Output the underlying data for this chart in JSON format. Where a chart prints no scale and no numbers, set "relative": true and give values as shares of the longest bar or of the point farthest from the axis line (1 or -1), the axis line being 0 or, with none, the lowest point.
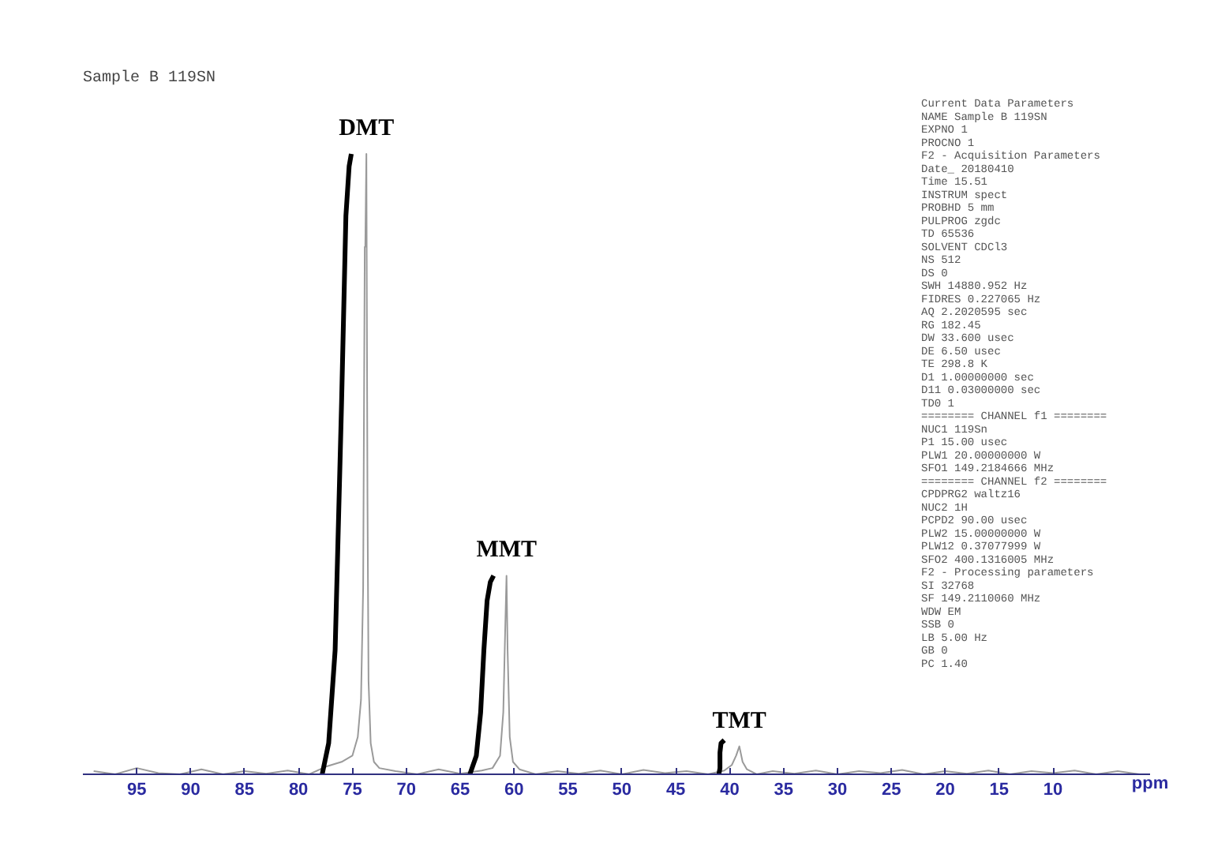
{
  "chart_data": {
    "type": "line",
    "title": "Sample B 119SN",
    "xlabel": "ppm",
    "relative": true,
    "xlim": [
      100,
      1
    ],
    "xticks": [
      95,
      90,
      85,
      80,
      75,
      70,
      65,
      60,
      55,
      50,
      45,
      40,
      35,
      30,
      25,
      20,
      15,
      10
    ],
    "tick_labels": "x",
    "grid": false,
    "marker": "none",
    "line_style": "solid",
    "series": [
      {
        "color": "#9a9a9a",
        "x": [
          99,
          97,
          95,
          93,
          91,
          89,
          87,
          85,
          83,
          81,
          79,
          77.5,
          76,
          75,
          74.5,
          74.2,
          74.0,
          73.85,
          73.8,
          73.7,
          73.6,
          73.5,
          73.3,
          73.0,
          72.5,
          71,
          69,
          67,
          65,
          63,
          62,
          61.3,
          61.0,
          60.8,
          60.7,
          60.6,
          60.4,
          60.1,
          59.5,
          58,
          56,
          54,
          52,
          50,
          48,
          46,
          44,
          42,
          40.5,
          39.8,
          39.4,
          39.1,
          38.8,
          38.4,
          37.5,
          36,
          34,
          32,
          30,
          28,
          26,
          24,
          22,
          20,
          18,
          16,
          14,
          12,
          10,
          8,
          6,
          4,
          2
        ],
        "values": [
          0.005,
          0.0,
          0.01,
          0.002,
          0.0,
          0.008,
          0.0,
          0.005,
          0.001,
          0.006,
          0.0,
          0.012,
          0.02,
          0.03,
          0.06,
          0.12,
          0.3,
          0.85,
          0.85,
          1.0,
          0.45,
          0.15,
          0.05,
          0.02,
          0.01,
          0.005,
          0.0,
          0.008,
          0.001,
          0.006,
          0.01,
          0.03,
          0.1,
          0.25,
          0.32,
          0.2,
          0.06,
          0.02,
          0.008,
          0.0,
          0.005,
          0.001,
          0.006,
          0.0,
          0.007,
          0.002,
          0.005,
          0.0,
          0.006,
          0.015,
          0.03,
          0.045,
          0.02,
          0.008,
          0.0,
          0.005,
          0.001,
          0.006,
          0.0,
          0.005,
          0.002,
          0.007,
          0.0,
          0.005,
          0.001,
          0.006,
          0.0,
          0.005,
          0.002,
          0.006,
          0.0,
          0.005,
          0.0
        ]
      },
      {
        "color": "#000000",
        "x": [
          77.8,
          77.2,
          76.6,
          76.0,
          75.6,
          75.3,
          75.1
        ],
        "values": [
          0.0,
          0.05,
          0.2,
          0.6,
          0.9,
          0.98,
          1.0
        ]
      },
      {
        "color": "#000000",
        "x": [
          64.1,
          63.5,
          63.1,
          62.8,
          62.5,
          62.2,
          61.9
        ],
        "values": [
          0.0,
          0.03,
          0.1,
          0.2,
          0.28,
          0.31,
          0.32
        ]
      },
      {
        "color": "#000000",
        "x": [
          41.0,
          40.9,
          40.9,
          40.8,
          40.5
        ],
        "values": [
          0.0,
          0.01,
          0.035,
          0.05,
          0.055
        ]
      }
    ],
    "annotations": [
      {
        "text": "DMT",
        "x": 73.7,
        "y": 1.0
      },
      {
        "text": "MMT",
        "x": 60.7,
        "y": 0.32
      },
      {
        "text": "TMT",
        "x": 39.1,
        "y": 0.045
      },
      "Current Data Parameters",
      "NAME Sample B 119SN",
      "EXPNO 1",
      "PROCNO 1",
      "F2 - Acquisition Parameters",
      "Date_ 20180410",
      "Time 15.51",
      "INSTRUM spect",
      "PROBHD 5 mm",
      "PULPROG zgdc",
      "TD 65536",
      "SOLVENT CDCl3",
      "NS 512",
      "DS 0",
      "SWH 14880.952 Hz",
      "FIDRES 0.227065 Hz",
      "AQ 2.2020595 sec",
      "RG 182.45",
      "DW 33.600 usec",
      "DE 6.50 usec",
      "TE 298.8 K",
      "D1 1.00000000 sec",
      "D11 0.03000000 sec",
      "TD0 1",
      "======== CHANNEL f1 ========",
      "NUC1 119Sn",
      "P1 15.00 usec",
      "PLW1 20.00000000 W",
      "SFO1 149.2184666 MHz",
      "======== CHANNEL f2 ========",
      "CPDPRG2 waltz16",
      "NUC2 1H",
      "PCPD2 90.00 usec",
      "PLW2 15.00000000 W",
      "PLW12 0.37077999 W",
      "SFO2 400.1316005 MHz",
      "F2 - Processing parameters",
      "SI 32768",
      "SF 149.2110060 MHz",
      "WDW EM",
      "SSB 0",
      "LB 5.00 Hz",
      "GB 0",
      "PC 1.40"
    ]
  }
}
